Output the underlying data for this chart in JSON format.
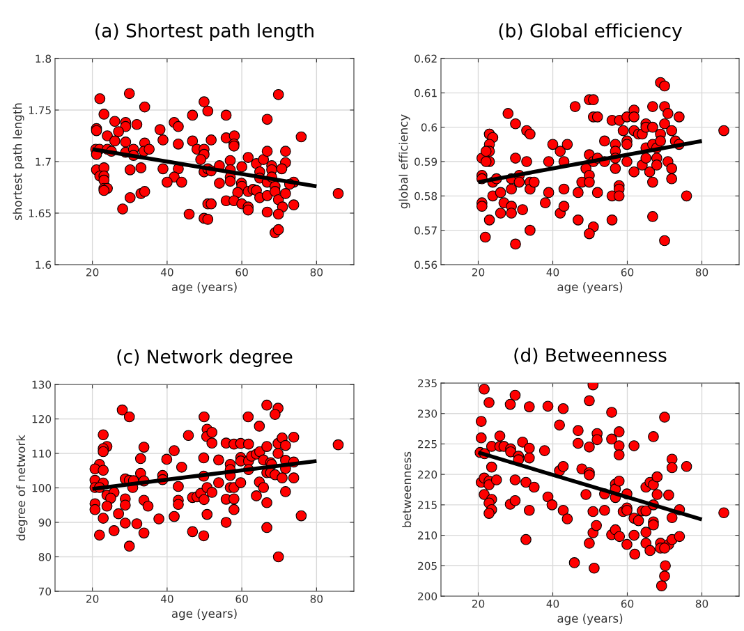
{
  "chart_data": [
    {
      "type": "scatter",
      "title": "(a) Shortest path length",
      "xlabel": "age (years)",
      "ylabel": "shortest path length",
      "xlim": [
        10,
        90
      ],
      "xticks": [
        20,
        40,
        60,
        80
      ],
      "ylim": [
        1.6,
        1.8
      ],
      "yticks": [
        1.6,
        1.65,
        1.7,
        1.75,
        1.8
      ],
      "grid": true,
      "series": [
        {
          "type": "scatter",
          "color": "#ff0000",
          "marker": "circle",
          "x": [
            22.0,
            29.9,
            34.0,
            23.1,
            26.0,
            28.9,
            28.9,
            31.9,
            21.1,
            21.1,
            27.0,
            24.0,
            26.0,
            28.9,
            34.0,
            20.9,
            21.9,
            24.0,
            25.1,
            28.9,
            31.0,
            31.0,
            33.8,
            35.2,
            21.1,
            21.1,
            23.1,
            22.0,
            23.1,
            23.1,
            23.1,
            24.0,
            23.1,
            30.1,
            33.0,
            30.1,
            33.0,
            34.0,
            28.1,
            38.1,
            38.9,
            41.9,
            43.0,
            43.0,
            46.8,
            46.8,
            48.0,
            49.9,
            49.9,
            49.0,
            49.9,
            50.9,
            51.8,
            38.9,
            43.0,
            41.9,
            40.0,
            43.9,
            49.9,
            50.9,
            51.8,
            54.0,
            54.0,
            45.9,
            49.9,
            50.9,
            50.9,
            51.8,
            55.8,
            55.8,
            58.0,
            57.9,
            57.9,
            56.9,
            56.9,
            56.9,
            56.9,
            60.0,
            61.7,
            63.9,
            65.8,
            66.8,
            66.8,
            69.8,
            71.7,
            71.7,
            70.7,
            68.0,
            68.0,
            64.8,
            64.8,
            66.8,
            68.9,
            68.0,
            59.9,
            60.0,
            58.9,
            61.7,
            63.0,
            63.9,
            64.8,
            66.8,
            68.9,
            69.8,
            71.7,
            70.9,
            73.9,
            73.9,
            72.8,
            75.9,
            85.8,
            55.8,
            57.9,
            60.0,
            61.7,
            61.7,
            66.8,
            69.8,
            68.9,
            69.8
          ],
          "values": [
            1.761,
            1.766,
            1.753,
            1.746,
            1.739,
            1.738,
            1.734,
            1.736,
            1.732,
            1.73,
            1.729,
            1.725,
            1.72,
            1.719,
            1.718,
            1.712,
            1.712,
            1.712,
            1.71,
            1.709,
            1.712,
            1.706,
            1.71,
            1.712,
            1.707,
            1.692,
            1.694,
            1.686,
            1.686,
            1.682,
            1.674,
            1.674,
            1.672,
            1.692,
            1.694,
            1.665,
            1.669,
            1.671,
            1.654,
            1.731,
            1.721,
            1.738,
            1.734,
            1.717,
            1.745,
            1.72,
            1.712,
            1.712,
            1.707,
            1.702,
            1.758,
            1.749,
            1.721,
            1.693,
            1.693,
            1.685,
            1.68,
            1.68,
            1.69,
            1.693,
            1.691,
            1.696,
            1.679,
            1.649,
            1.645,
            1.644,
            1.659,
            1.659,
            1.745,
            1.723,
            1.725,
            1.717,
            1.715,
            1.701,
            1.692,
            1.685,
            1.681,
            1.695,
            1.704,
            1.698,
            1.702,
            1.71,
            1.741,
            1.765,
            1.71,
            1.699,
            1.693,
            1.696,
            1.692,
            1.69,
            1.684,
            1.68,
            1.676,
            1.685,
            1.679,
            1.676,
            1.67,
            1.671,
            1.673,
            1.672,
            1.665,
            1.667,
            1.671,
            1.663,
            1.669,
            1.656,
            1.658,
            1.68,
            1.678,
            1.724,
            1.669,
            1.662,
            1.662,
            1.659,
            1.656,
            1.653,
            1.651,
            1.649,
            1.631,
            1.634
          ]
        },
        {
          "type": "line",
          "color": "#000000",
          "marker": "none",
          "line_style": "solid",
          "x": [
            20,
            80
          ],
          "values": [
            1.712,
            1.676
          ]
        }
      ]
    },
    {
      "type": "scatter",
      "title": "(b) Global efficiency",
      "xlabel": "age (years)",
      "ylabel": "global efficiency",
      "xlim": [
        10,
        90
      ],
      "xticks": [
        20,
        40,
        60,
        80
      ],
      "ylim": [
        0.56,
        0.62
      ],
      "yticks": [
        0.56,
        0.57,
        0.58,
        0.59,
        0.6,
        0.61,
        0.62
      ],
      "grid": true,
      "series": [
        {
          "type": "scatter",
          "color": "#ff0000",
          "marker": "circle",
          "x": [
            21.0,
            21.0,
            21.0,
            21.0,
            21.0,
            21.9,
            23.0,
            23.0,
            23.0,
            23.9,
            23.0,
            23.0,
            22.1,
            23.0,
            22.1,
            23.9,
            24.9,
            23.9,
            26.0,
            26.0,
            26.9,
            28.0,
            28.9,
            28.9,
            28.9,
            28.9,
            30.0,
            30.0,
            30.0,
            31.0,
            31.0,
            31.9,
            33.0,
            33.0,
            33.9,
            33.9,
            33.9,
            33.9,
            35.0,
            38.0,
            38.9,
            38.9,
            40.0,
            42.0,
            42.0,
            43.0,
            43.0,
            43.0,
            43.9,
            46.0,
            46.8,
            46.8,
            47.8,
            48.9,
            49.8,
            50.9,
            49.8,
            49.8,
            49.8,
            50.9,
            50.9,
            52.0,
            50.9,
            49.8,
            52.0,
            52.0,
            53.9,
            53.9,
            55.9,
            55.9,
            55.9,
            56.8,
            56.8,
            56.8,
            56.8,
            57.8,
            57.8,
            57.8,
            57.9,
            58.9,
            59.9,
            59.9,
            59.9,
            59.9,
            61.8,
            61.8,
            61.8,
            61.8,
            63.0,
            64.0,
            64.0,
            65.0,
            65.0,
            65.0,
            65.0,
            66.0,
            66.8,
            66.8,
            66.8,
            66.8,
            66.8,
            67.9,
            67.9,
            67.9,
            68.9,
            68.9,
            68.9,
            70.0,
            70.0,
            70.0,
            70.0,
            70.9,
            70.9,
            71.9,
            71.9,
            71.9,
            72.9,
            73.9,
            73.9,
            75.9,
            85.9
          ],
          "values": [
            0.591,
            0.586,
            0.585,
            0.578,
            0.577,
            0.568,
            0.573,
            0.598,
            0.598,
            0.597,
            0.595,
            0.593,
            0.593,
            0.59,
            0.59,
            0.584,
            0.585,
            0.58,
            0.581,
            0.575,
            0.578,
            0.604,
            0.585,
            0.582,
            0.577,
            0.575,
            0.601,
            0.591,
            0.566,
            0.586,
            0.584,
            0.576,
            0.59,
            0.599,
            0.598,
            0.584,
            0.582,
            0.57,
            0.584,
            0.578,
            0.59,
            0.581,
            0.595,
            0.593,
            0.575,
            0.577,
            0.59,
            0.582,
            0.595,
            0.606,
            0.581,
            0.573,
            0.584,
            0.588,
            0.608,
            0.608,
            0.592,
            0.586,
            0.584,
            0.59,
            0.603,
            0.603,
            0.571,
            0.569,
            0.581,
            0.591,
            0.596,
            0.59,
            0.602,
            0.58,
            0.573,
            0.595,
            0.593,
            0.588,
            0.591,
            0.583,
            0.582,
            0.58,
            0.602,
            0.599,
            0.603,
            0.596,
            0.595,
            0.59,
            0.605,
            0.603,
            0.587,
            0.599,
            0.598,
            0.598,
            0.589,
            0.601,
            0.6,
            0.594,
            0.591,
            0.587,
            0.584,
            0.606,
            0.6,
            0.595,
            0.574,
            0.594,
            0.591,
            0.589,
            0.613,
            0.598,
            0.596,
            0.612,
            0.606,
            0.601,
            0.567,
            0.604,
            0.59,
            0.599,
            0.588,
            0.585,
            0.596,
            0.595,
            0.603,
            0.58,
            0.599
          ]
        },
        {
          "type": "line",
          "color": "#000000",
          "marker": "none",
          "line_style": "solid",
          "x": [
            20,
            80
          ],
          "values": [
            0.584,
            0.596
          ]
        }
      ]
    },
    {
      "type": "scatter",
      "title": "(c) Network degree",
      "xlabel": "age (years)",
      "ylabel": "degree of network",
      "xlim": [
        10,
        90
      ],
      "xticks": [
        20,
        40,
        60,
        80
      ],
      "ylim": [
        70,
        130
      ],
      "yticks": [
        70,
        80,
        90,
        100,
        110,
        120,
        130
      ],
      "grid": true,
      "series": [
        {
          "type": "scatter",
          "color": "#ff0000",
          "marker": "circle",
          "x": [
            28.0,
            29.9,
            22.9,
            23.9,
            22.9,
            22.9,
            33.8,
            32.9,
            32.9,
            33.8,
            33.8,
            34.9,
            21.9,
            20.7,
            22.9,
            20.7,
            22.9,
            20.7,
            21.9,
            23.9,
            25.8,
            24.9,
            20.7,
            20.7,
            23.9,
            22.9,
            21.9,
            25.8,
            27.0,
            28.8,
            29.9,
            31.0,
            30.8,
            28.8,
            28.8,
            28.8,
            31.9,
            33.8,
            29.9,
            37.8,
            38.8,
            38.8,
            39.9,
            41.9,
            41.9,
            43.0,
            43.0,
            43.0,
            43.9,
            45.7,
            46.8,
            48.0,
            49.0,
            49.9,
            46.8,
            49.8,
            50.7,
            49.8,
            49.8,
            49.9,
            50.7,
            50.6,
            52.0,
            52.0,
            50.7,
            52.0,
            53.8,
            53.8,
            55.8,
            55.8,
            55.8,
            57.9,
            59.7,
            61.8,
            56.9,
            56.9,
            56.9,
            56.9,
            57.9,
            57.9,
            57.9,
            59.7,
            59.7,
            59.7,
            61.7,
            61.8,
            61.8,
            62.6,
            63.9,
            64.8,
            64.7,
            66.7,
            69.7,
            68.9,
            65.8,
            66.7,
            67.7,
            68.0,
            66.7,
            67.7,
            68.9,
            64.7,
            65.8,
            63.9,
            66.7,
            66.7,
            69.7,
            69.7,
            70.8,
            71.7,
            71.7,
            71.7,
            70.8,
            71.7,
            73.9,
            73.9,
            73.9,
            75.9,
            85.8,
            69.8
          ],
          "values": [
            122.6,
            120.6,
            115.4,
            112.0,
            111.4,
            110.5,
            111.8,
            108.5,
            104.2,
            102.0,
            96.4,
            94.7,
            106.8,
            105.5,
            105.1,
            102.2,
            101.4,
            100.1,
            100.1,
            97.9,
            98.7,
            97.0,
            95.4,
            93.7,
            94.7,
            91.2,
            86.3,
            87.6,
            92.5,
            102.6,
            102.2,
            102.1,
            100.1,
            96.8,
            95.0,
            89.8,
            89.6,
            86.9,
            83.1,
            91.0,
            103.6,
            102.4,
            108.3,
            110.8,
            91.7,
            100.4,
            96.4,
            95.2,
            106.0,
            115.2,
            97.2,
            97.4,
            98.4,
            96.6,
            87.3,
            86.1,
            92.3,
            103.4,
            108.7,
            120.6,
            117.0,
            114.9,
            116.1,
            113.0,
            100.1,
            98.7,
            108.1,
            101.5,
            113.0,
            96.7,
            90.0,
            112.7,
            112.9,
            112.7,
            106.8,
            105.3,
            103.6,
            100.1,
            100.1,
            96.8,
            93.7,
            108.8,
            107.8,
            101.5,
            120.6,
            107.8,
            105.3,
            109.2,
            109.8,
            110.5,
            117.9,
            124.0,
            123.1,
            121.3,
            108.1,
            112.0,
            107.3,
            106.8,
            104.4,
            104.4,
            103.8,
            101.7,
            100.1,
            97.7,
            95.7,
            88.5,
            112.9,
            110.0,
            114.5,
            112.3,
            108.0,
            105.6,
            102.9,
            98.9,
            114.7,
            107.5,
            102.9,
            91.9,
            112.5,
            80.0
          ]
        },
        {
          "type": "line",
          "color": "#000000",
          "marker": "none",
          "line_style": "solid",
          "x": [
            20,
            80
          ],
          "values": [
            99.7,
            107.8
          ]
        }
      ]
    },
    {
      "type": "scatter",
      "title": "(d) Betweenness",
      "xlabel": "age (years)",
      "ylabel": "betweenness",
      "xlim": [
        10,
        90
      ],
      "xticks": [
        20,
        40,
        60,
        80
      ],
      "ylim": [
        200,
        235
      ],
      "yticks": [
        200,
        205,
        210,
        215,
        220,
        225,
        230,
        235
      ],
      "grid": true,
      "series": [
        {
          "type": "scatter",
          "color": "#ff0000",
          "marker": "circle",
          "x": [
            21.6,
            22.9,
            28.6,
            29.9,
            20.8,
            20.8,
            20.5,
            21.7,
            23.6,
            25.8,
            25.8,
            26.9,
            28.7,
            28.7,
            30.8,
            30.8,
            31.9,
            33.7,
            33.7,
            23.6,
            20.8,
            21.6,
            22.9,
            22.9,
            24.9,
            29.9,
            32.8,
            35.0,
            21.6,
            23.6,
            22.9,
            23.6,
            22.9,
            28.6,
            29.9,
            33.7,
            32.8,
            33.7,
            38.7,
            37.8,
            38.7,
            39.8,
            41.8,
            42.8,
            41.8,
            42.8,
            42.8,
            43.9,
            46.8,
            46.8,
            47.8,
            49.8,
            50.8,
            49.8,
            49.8,
            49.8,
            48.9,
            50.8,
            50.8,
            49.8,
            51.7,
            51.9,
            51.9,
            53.9,
            53.9,
            55.8,
            55.8,
            55.8,
            56.8,
            56.8,
            56.8,
            57.8,
            56.8,
            57.8,
            57.8,
            57.8,
            57.9,
            58.9,
            59.9,
            59.9,
            59.9,
            59.9,
            61.8,
            61.8,
            63.0,
            61.8,
            62.0,
            64.0,
            65.0,
            65.0,
            65.0,
            66.1,
            67.0,
            68.0,
            68.0,
            67.0,
            67.0,
            67.0,
            67.0,
            65.0,
            66.1,
            68.9,
            68.9,
            70.0,
            71.1,
            72.0,
            74.0,
            70.0,
            72.0,
            72.0,
            71.1,
            72.0,
            74.0,
            75.9,
            85.9,
            45.8,
            51.1,
            69.2,
            70.0,
            70.2
          ],
          "values": [
            234.0,
            231.8,
            231.5,
            233.0,
            228.7,
            226.0,
            223.6,
            223.4,
            224.6,
            226.3,
            224.6,
            224.6,
            224.2,
            223.7,
            223.0,
            222.4,
            225.3,
            224.3,
            222.7,
            221.2,
            218.7,
            219.4,
            218.9,
            218.3,
            219.1,
            219.1,
            218.7,
            217.9,
            216.7,
            215.9,
            215.3,
            214.2,
            213.6,
            215.1,
            215.7,
            214.1,
            209.3,
            231.1,
            231.2,
            223.9,
            216.3,
            215.0,
            228.1,
            230.8,
            220.6,
            221.3,
            214.1,
            212.7,
            227.2,
            225.1,
            220.9,
            232.1,
            234.7,
            224.5,
            220.3,
            219.9,
            216.7,
            213.9,
            210.4,
            208.7,
            211.6,
            226.7,
            225.7,
            216.8,
            214.1,
            230.2,
            225.8,
            210.1,
            210.9,
            218.4,
            217.6,
            218.9,
            216.2,
            227.0,
            224.7,
            223.2,
            209.8,
            213.9,
            214.5,
            214.1,
            216.8,
            208.5,
            224.7,
            212.8,
            212.4,
            210.0,
            206.9,
            214.0,
            214.0,
            210.5,
            217.9,
            218.7,
            218.3,
            219.6,
            216.7,
            215.0,
            212.2,
            211.7,
            226.2,
            208.7,
            207.5,
            208.7,
            207.9,
            229.4,
            208.5,
            209.3,
            209.8,
            207.9,
            222.5,
            221.1,
            216.6,
            212.9,
            214.2,
            221.3,
            213.7,
            205.5,
            204.6,
            201.7,
            203.3,
            205.0
          ]
        },
        {
          "type": "line",
          "color": "#000000",
          "marker": "none",
          "line_style": "solid",
          "x": [
            20,
            80
          ],
          "values": [
            223.6,
            212.6
          ]
        }
      ]
    }
  ]
}
